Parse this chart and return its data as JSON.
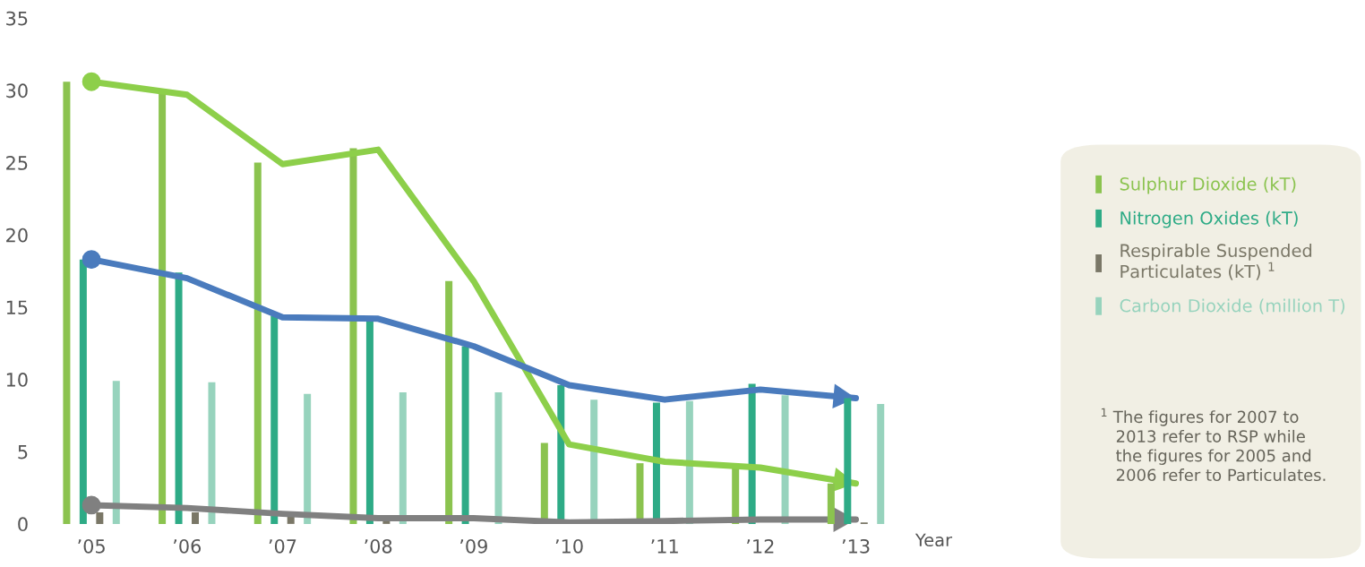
{
  "chart_data": {
    "type": "bar",
    "xlabel": "Year",
    "categories": [
      "’05",
      "’06",
      "’07",
      "’08",
      "’09",
      "’10",
      "’11",
      "’12",
      "’13"
    ],
    "series": [
      {
        "name": "Sulphur Dioxide (kT)",
        "color": "#8bc34f",
        "values": [
          30.6,
          29.8,
          25.0,
          26.0,
          16.8,
          5.6,
          4.2,
          3.9,
          2.8
        ]
      },
      {
        "name": "Nitrogen Oxides (kT)",
        "color": "#2eab86",
        "values": [
          18.3,
          17.4,
          14.4,
          14.3,
          12.3,
          9.6,
          8.4,
          9.7,
          8.7
        ]
      },
      {
        "name": "Respirable Suspended\nParticulates (kT) $^{1}$",
        "color": "#7a7767",
        "values": [
          0.8,
          0.8,
          0.5,
          0.3,
          null,
          null,
          null,
          null,
          0.1
        ]
      },
      {
        "name": "Carbon Dioxide (million T)",
        "color": "#97d3bd",
        "values": [
          9.9,
          9.8,
          9.0,
          9.1,
          9.1,
          8.6,
          8.5,
          8.9,
          8.3
        ]
      },
      {
        "type": "line",
        "color": "#8dcf4a",
        "values": [
          30.6,
          29.7,
          24.9,
          25.9,
          16.8,
          5.5,
          4.3,
          3.9,
          2.8
        ]
      },
      {
        "type": "line",
        "color": "#4a7bbd",
        "values": [
          18.3,
          17.0,
          14.3,
          14.2,
          12.3,
          9.6,
          8.6,
          9.3,
          8.7
        ]
      },
      {
        "type": "line",
        "color": "#808080",
        "values": [
          1.3,
          1.1,
          0.7,
          0.4,
          0.4,
          0.1,
          0.2,
          0.3,
          0.3
        ]
      }
    ],
    "ylim": [
      0,
      35
    ],
    "yticks": [
      0,
      5,
      10,
      15,
      20,
      25,
      30,
      35
    ],
    "grid": false,
    "legend": "right",
    "annotations": [
      "$^{1}$ The figures for 2007 to\n   2013 refer to RSP while\n   the figures for 2005 and\n   2006 refer to Particulates."
    ]
  }
}
